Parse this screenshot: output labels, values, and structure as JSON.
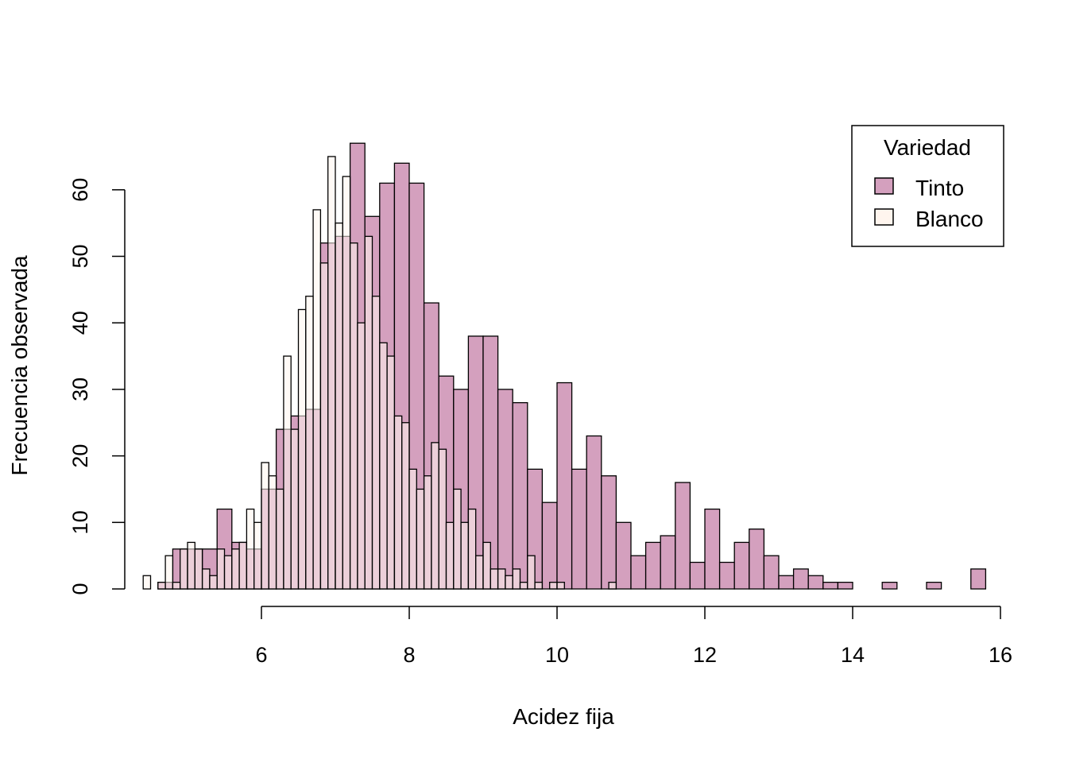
{
  "chart_data": {
    "type": "bar",
    "subtype": "overlaid-histogram",
    "title": "",
    "xlabel": "Acidez fija",
    "ylabel": "Frecuencia observada",
    "xlim": [
      4.0,
      16.0
    ],
    "ylim": [
      0,
      68
    ],
    "x_ticks": [
      6,
      8,
      10,
      12,
      14,
      16
    ],
    "y_ticks": [
      0,
      10,
      20,
      30,
      40,
      50,
      60
    ],
    "grid": false,
    "legend": {
      "title": "Variedad",
      "position": "top-right",
      "entries": [
        "Tinto",
        "Blanco"
      ]
    },
    "series": [
      {
        "name": "Tinto",
        "color": "#d4a0be",
        "bin_width": 0.2,
        "bin_start": 4.6,
        "values": [
          1,
          6,
          6,
          6,
          12,
          7,
          6,
          15,
          24,
          26,
          27,
          52,
          53,
          67,
          56,
          61,
          64,
          61,
          43,
          32,
          30,
          38,
          38,
          30,
          28,
          18,
          13,
          31,
          18,
          23,
          17,
          10,
          5,
          7,
          8,
          16,
          4,
          12,
          4,
          7,
          9,
          5,
          2,
          3,
          2,
          1,
          1,
          0,
          0,
          1,
          0,
          0,
          1,
          0,
          0,
          3
        ]
      },
      {
        "name": "Blanco",
        "color": "#fff5ee",
        "bin_width": 0.1,
        "bin_start": 4.4,
        "values": [
          2,
          0,
          1,
          5,
          1,
          6,
          7,
          6,
          3,
          2,
          6,
          5,
          6,
          7,
          12,
          10,
          19,
          17,
          15,
          35,
          24,
          42,
          44,
          57,
          49,
          65,
          55,
          62,
          52,
          40,
          53,
          44,
          37,
          35,
          26,
          25,
          18,
          15,
          17,
          22,
          21,
          10,
          15,
          10,
          12,
          5,
          7,
          3,
          3,
          2,
          3,
          1,
          5,
          1,
          0,
          1,
          1,
          0,
          0,
          0,
          0,
          0,
          0,
          1
        ]
      }
    ]
  }
}
